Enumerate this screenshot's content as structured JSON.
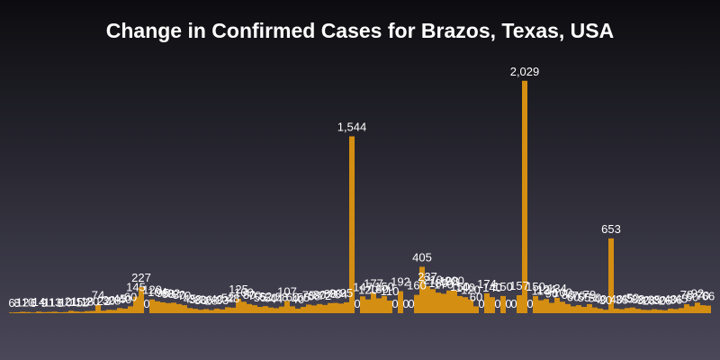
{
  "chart_data": {
    "type": "bar",
    "title": "Change in Confirmed Cases for Brazos, Texas, USA",
    "categories": [
      null,
      null,
      null,
      null,
      null,
      null,
      null,
      null,
      null,
      null,
      null,
      null,
      null,
      null,
      null,
      null,
      null,
      null,
      null,
      null,
      null,
      null,
      null,
      null,
      null,
      null,
      null,
      null,
      null,
      null,
      null,
      null,
      null,
      null,
      null,
      null,
      null,
      null,
      null,
      null,
      null,
      null,
      null,
      null,
      null,
      null,
      null,
      null,
      null,
      null,
      null,
      null,
      null,
      null,
      null,
      null,
      null,
      null,
      null,
      null,
      null,
      null,
      null,
      null,
      null,
      null,
      null,
      null,
      null,
      null,
      null,
      null,
      null,
      null,
      null,
      null,
      null,
      null,
      null,
      null,
      null,
      null,
      null,
      null,
      null,
      null,
      null,
      null,
      null,
      null,
      null,
      null,
      null,
      null,
      null,
      null,
      null,
      null,
      null,
      null,
      null,
      null,
      null,
      null,
      null,
      null,
      null,
      null,
      null,
      null,
      null,
      null,
      null,
      null,
      null,
      null,
      null,
      null,
      null,
      null,
      null,
      null,
      null,
      null,
      null,
      null,
      null,
      null,
      null,
      null
    ],
    "values": [
      6,
      8,
      12,
      10,
      6,
      14,
      9,
      11,
      13,
      8,
      10,
      21,
      15,
      12,
      18,
      20,
      74,
      22,
      30,
      28,
      45,
      40,
      60,
      145,
      227,
      0,
      120,
      104,
      95,
      88,
      92,
      80,
      70,
      45,
      38,
      30,
      36,
      28,
      40,
      33,
      52,
      48,
      125,
      100,
      80,
      70,
      55,
      62,
      50,
      44,
      58,
      107,
      60,
      40,
      55,
      75,
      68,
      80,
      72,
      88,
      90,
      84,
      95,
      1544,
      0,
      147,
      120,
      177,
      130,
      150,
      110,
      0,
      192,
      0,
      0,
      160,
      405,
      237,
      210,
      180,
      170,
      198,
      200,
      150,
      140,
      120,
      60,
      0,
      174,
      140,
      0,
      150,
      0,
      0,
      157,
      2029,
      0,
      150,
      113,
      124,
      90,
      134,
      100,
      80,
      60,
      70,
      55,
      79,
      50,
      40,
      30,
      653,
      40,
      35,
      45,
      50,
      38,
      30,
      28,
      35,
      30,
      26,
      40,
      36,
      45,
      78,
      60,
      92,
      70,
      66
    ],
    "value_labels": [
      "6",
      "8",
      "12",
      "10",
      "6",
      "14",
      "9",
      "11",
      "13",
      "8",
      "10",
      "21",
      "15",
      "12",
      "18",
      "20",
      "74",
      "22",
      "30",
      "28",
      "45",
      "40",
      "60",
      "145",
      "227",
      "0",
      "120",
      "104",
      "95",
      "88",
      "92",
      "80",
      "70",
      "45",
      "38",
      "30",
      "36",
      "28",
      "40",
      "33",
      "52",
      "48",
      "125",
      "100",
      "80",
      "70",
      "55",
      "62",
      "50",
      "44",
      "58",
      "107",
      "60",
      "40",
      "55",
      "75",
      "68",
      "80",
      "72",
      "88",
      "90",
      "84",
      "95",
      "1,544",
      "0",
      "147",
      "120",
      "177",
      "130",
      "150",
      "110",
      "0",
      "192",
      "0",
      "0",
      "160",
      "405",
      "237",
      "210",
      "180",
      "170",
      "198",
      "200",
      "150",
      "140",
      "120",
      "60",
      "0",
      "174",
      "140",
      "0",
      "150",
      "0",
      "0",
      "157",
      "2,029",
      "0",
      "150",
      "113",
      "124",
      "90",
      "134",
      "100",
      "80",
      "60",
      "70",
      "55",
      "79",
      "50",
      "40",
      "30",
      "653",
      "40",
      "35",
      "45",
      "50",
      "38",
      "30",
      "28",
      "35",
      "30",
      "26",
      "40",
      "36",
      "45",
      "78",
      "60",
      "92",
      "70",
      "66"
    ],
    "color": "#d48e12",
    "ylim": [
      0,
      2200
    ]
  }
}
